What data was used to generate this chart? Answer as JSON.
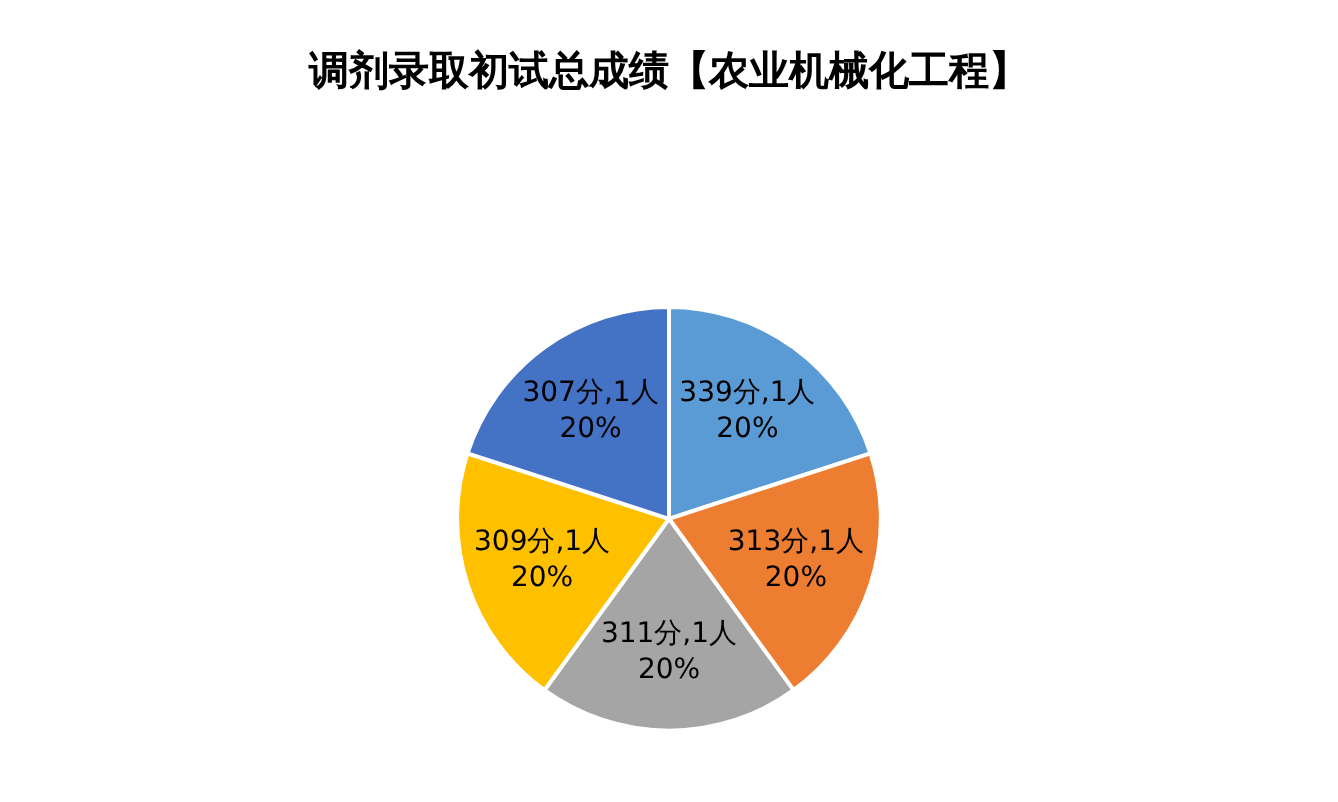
{
  "chart_data": {
    "type": "pie",
    "title": "调剂录取初试总成绩【农业机械化工程】",
    "categories": [
      "339分,1人",
      "313分,1人",
      "311分,1人",
      "309分,1人",
      "307分,1人"
    ],
    "values": [
      20,
      20,
      20,
      20,
      20
    ],
    "value_labels": [
      "20%",
      "20%",
      "20%",
      "20%",
      "20%"
    ],
    "colors": [
      "#5b9bd5",
      "#ed7d31",
      "#a5a5a5",
      "#ffc000",
      "#4472c4"
    ],
    "legend": false
  }
}
